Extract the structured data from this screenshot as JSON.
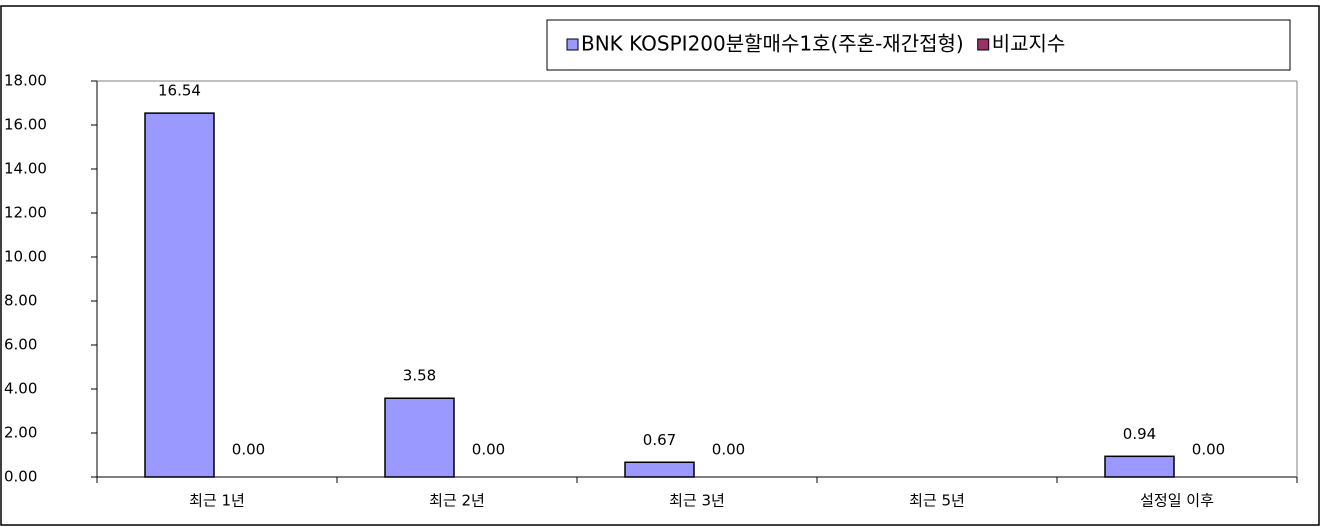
{
  "chart_data": {
    "type": "bar",
    "categories": [
      "최근 1년",
      "최근 2년",
      "최근 3년",
      "최근 5년",
      "설정일 이후"
    ],
    "series": [
      {
        "name": "BNK KOSPI200분할매수1호(주혼-재간접형)",
        "color": "#9999ff",
        "values": [
          16.54,
          3.58,
          0.67,
          null,
          0.94
        ]
      },
      {
        "name": "비교지수",
        "color": "#993366",
        "values": [
          0,
          0,
          0,
          null,
          0
        ],
        "value_labels": [
          "0.00",
          "0.00",
          "0.00",
          null,
          "0.00"
        ]
      }
    ],
    "ylim": [
      0,
      18
    ],
    "yticks": [
      {
        "value": 0,
        "label": "0.00"
      },
      {
        "value": 2,
        "label": "2.00"
      },
      {
        "value": 4,
        "label": "4.00"
      },
      {
        "value": 6,
        "label": "6.00"
      },
      {
        "value": 8,
        "label": "8.00"
      },
      {
        "value": 10,
        "label": "10.00"
      },
      {
        "value": 12,
        "label": "12.00"
      },
      {
        "value": 14,
        "label": "14.00"
      },
      {
        "value": 16,
        "label": "16.00"
      },
      {
        "value": 18,
        "label": "18.00"
      }
    ],
    "grid": false,
    "legend": "top-right"
  }
}
